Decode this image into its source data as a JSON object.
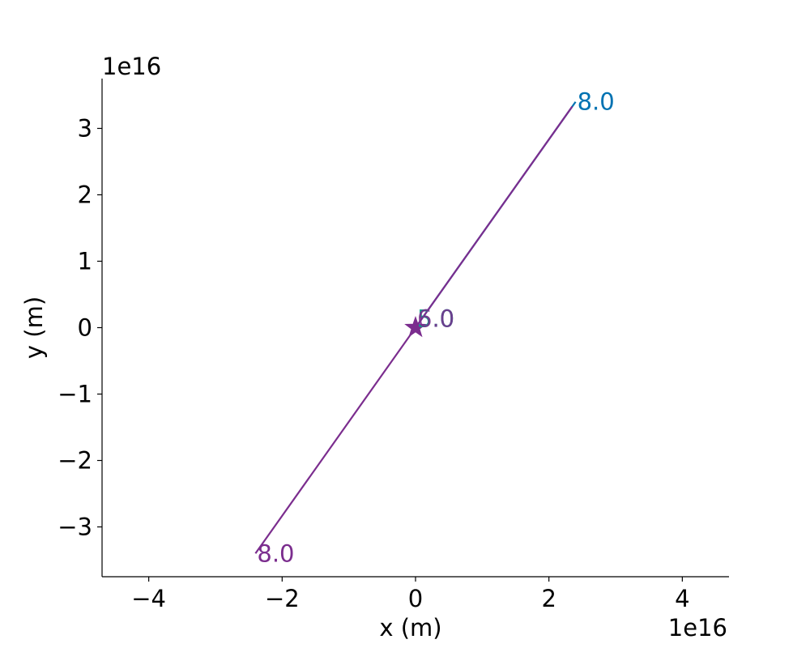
{
  "chart_data": {
    "type": "line",
    "xlabel": "x (m)",
    "ylabel": "y (m)",
    "x_offset_label": "1e16",
    "y_offset_label": "1e16",
    "xlim": [
      -4.7e+16,
      4.7e+16
    ],
    "ylim": [
      -3.75e+16,
      3.75e+16
    ],
    "x_ticks": [
      -4e+16,
      -2e+16,
      0,
      2e+16,
      4e+16
    ],
    "x_tick_labels": [
      "−4",
      "−2",
      "0",
      "2",
      "4"
    ],
    "y_ticks": [
      -3e+16,
      -2e+16,
      -1e+16,
      0,
      1e+16,
      2e+16,
      3e+16
    ],
    "y_tick_labels": [
      "−3",
      "−2",
      "−1",
      "0",
      "1",
      "2",
      "3"
    ],
    "grid": false,
    "center_marker": {
      "shape": "star",
      "x": 0,
      "y": 0,
      "color": "#7b2d8e"
    },
    "series": [
      {
        "color": "#0072b2",
        "x": [
          0,
          2.4e+16
        ],
        "y": [
          0,
          3.4e+16
        ],
        "end_label": "8.0",
        "end_x": 2.4e+16,
        "end_y": 3.4e+16
      },
      {
        "color": "#7b2d8e",
        "x": [
          0,
          -2.4e+16
        ],
        "y": [
          0,
          -3.4e+16
        ],
        "end_label": "8.0",
        "end_x": -2.4e+16,
        "end_y": -3.4e+16
      },
      {
        "color": "#7b2d8e",
        "x": [
          0,
          2.35e+16
        ],
        "y": [
          0,
          3.33e+16
        ],
        "end_label": "",
        "end_x": 2.35e+16,
        "end_y": 3.33e+16
      }
    ],
    "center_labels": [
      {
        "text": "5.0",
        "color": "#56b4e9",
        "x": 0,
        "y": 0
      },
      {
        "text": "5.0",
        "color": "#009e73",
        "x": 0,
        "y": 0
      },
      {
        "text": "6.0",
        "color": "#7b2d8e",
        "x": 0,
        "y": 0
      }
    ]
  }
}
